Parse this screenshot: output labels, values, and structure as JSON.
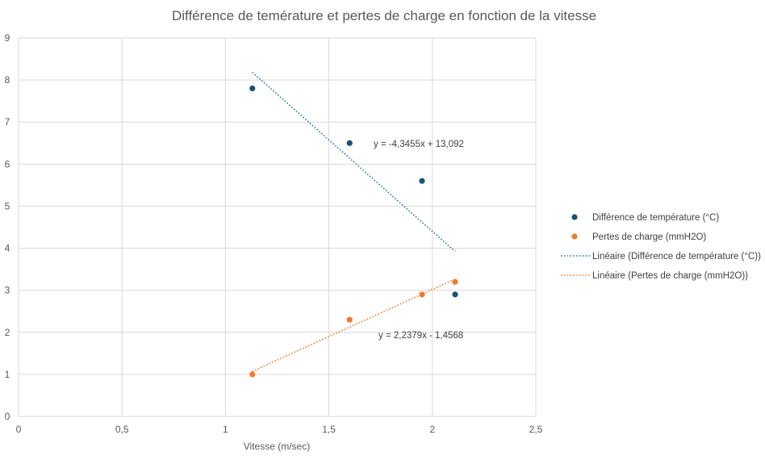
{
  "chart_data": {
    "type": "scatter",
    "title": "Différence de teméra­ture et pertes de charge en fonction de la vitesse",
    "xlabel": "Vitesse (m/sec)",
    "ylabel": "",
    "xlim": [
      0,
      2.5
    ],
    "ylim": [
      0,
      9
    ],
    "x_ticks": [
      "0",
      "0,5",
      "1",
      "1,5",
      "2",
      "2,5"
    ],
    "y_ticks": [
      "0",
      "1",
      "2",
      "3",
      "4",
      "5",
      "6",
      "7",
      "8",
      "9"
    ],
    "grid": true,
    "legend_position": "right",
    "series": [
      {
        "name": "Différence de température (°C)",
        "color": "#1a5276",
        "x": [
          1.13,
          1.6,
          1.95,
          2.11
        ],
        "y": [
          7.8,
          6.5,
          5.6,
          2.9
        ]
      },
      {
        "name": "Pertes de charge (mmH2O)",
        "color": "#ed7d31",
        "x": [
          1.13,
          1.6,
          1.95,
          2.11
        ],
        "y": [
          1.0,
          2.3,
          2.9,
          3.2
        ]
      }
    ],
    "trendlines": [
      {
        "name": "Linéaire (Différence de température (°C))",
        "color": "#2e75b6",
        "slope": -4.3455,
        "intercept": 13.092,
        "x_range": [
          1.13,
          2.11
        ],
        "equation": "y = -4,3455x + 13,092"
      },
      {
        "name": "Linéaire (Pertes de charge (mmH2O))",
        "color": "#ed7d31",
        "slope": 2.2379,
        "intercept": -1.4568,
        "x_range": [
          1.13,
          2.11
        ],
        "equation": "y = 2,2379x - 1,4568"
      }
    ]
  }
}
